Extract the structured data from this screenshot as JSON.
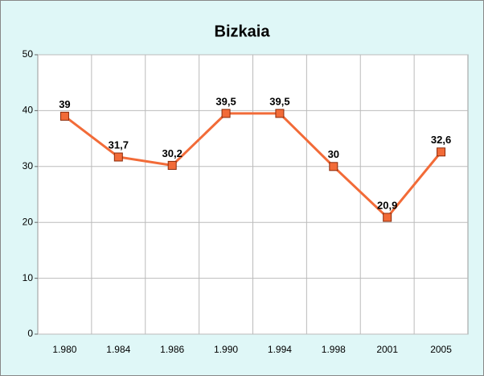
{
  "chart_data": {
    "type": "line",
    "title": "Bizkaia",
    "categories": [
      "1.980",
      "1.984",
      "1.986",
      "1.990",
      "1.994",
      "1.998",
      "2001",
      "2005"
    ],
    "series": [
      {
        "name": "Bizkaia",
        "color": "#f26b38",
        "values": [
          39,
          31.7,
          30.2,
          39.5,
          39.5,
          30,
          20.9,
          32.6
        ],
        "value_labels": [
          "39",
          "31,7",
          "30,2",
          "39,5",
          "39,5",
          "30",
          "20,9",
          "32,6"
        ]
      }
    ],
    "ylim": [
      0,
      50
    ],
    "yticks": [
      0,
      10,
      20,
      30,
      40,
      50
    ],
    "grid": true
  }
}
